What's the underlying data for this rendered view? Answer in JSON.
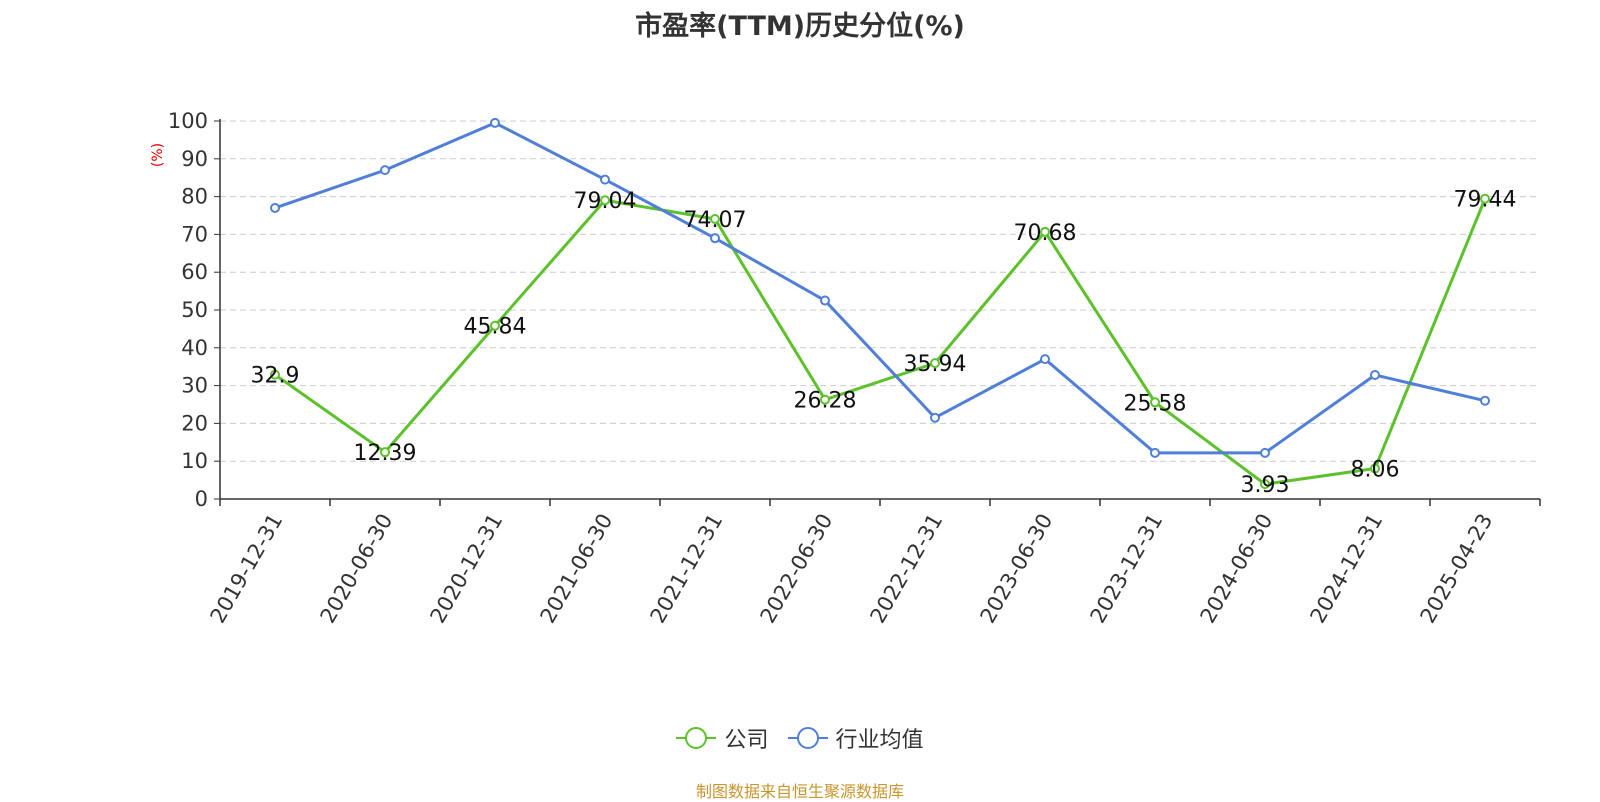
{
  "chart_data": {
    "type": "line",
    "title": "市盈率(TTM)历史分位(%)",
    "ylabel": "(%)",
    "ylim": [
      0,
      100
    ],
    "yticks": [
      0,
      10,
      20,
      30,
      40,
      50,
      60,
      70,
      80,
      90,
      100
    ],
    "grid": true,
    "legend_position": "bottom",
    "categories": [
      "2019-12-31",
      "2020-06-30",
      "2020-12-31",
      "2021-06-30",
      "2021-12-31",
      "2022-06-30",
      "2022-12-31",
      "2023-06-30",
      "2023-12-31",
      "2024-06-30",
      "2024-12-31",
      "2025-04-23"
    ],
    "series": [
      {
        "name": "公司",
        "color": "#5cc12a",
        "show_labels": true,
        "values": [
          32.9,
          12.39,
          45.84,
          79.04,
          74.07,
          26.28,
          35.94,
          70.68,
          25.58,
          3.93,
          8.06,
          79.44
        ]
      },
      {
        "name": "行业均值",
        "color": "#4f7fd8",
        "show_labels": false,
        "values": [
          77,
          87,
          99.5,
          84.5,
          69,
          52.5,
          21.5,
          37,
          12.2,
          12.2,
          32.8,
          26
        ]
      }
    ]
  },
  "source": "制图数据来自恒生聚源数据库"
}
